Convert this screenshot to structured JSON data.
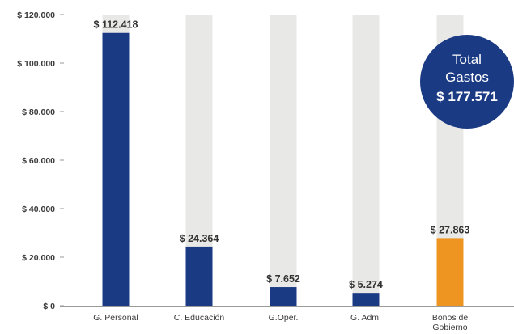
{
  "chart_data": {
    "type": "bar",
    "categories": [
      [
        "G. Personal"
      ],
      [
        "C. Educación"
      ],
      [
        "G.Oper."
      ],
      [
        "G. Adm."
      ],
      [
        "Bonos de",
        "Gobierno"
      ]
    ],
    "values": [
      112418,
      24364,
      7652,
      5274,
      27863
    ],
    "value_labels": [
      "$ 112.418",
      "$ 24.364",
      "$ 7.652",
      "$ 5.274",
      "$ 27.863"
    ],
    "bar_colors": [
      "#1b3a84",
      "#1b3a84",
      "#1b3a84",
      "#1b3a84",
      "#ee9420"
    ],
    "background_column_color": "#e8e8e6",
    "yticks": [
      {
        "value": 0,
        "label": "$ 0"
      },
      {
        "value": 20000,
        "label": "$ 20.000"
      },
      {
        "value": 40000,
        "label": "$ 40.000"
      },
      {
        "value": 60000,
        "label": "$ 60.000"
      },
      {
        "value": 80000,
        "label": "$ 80.000"
      },
      {
        "value": 100000,
        "label": "$ 100.000"
      },
      {
        "value": 120000,
        "label": "$ 120.000"
      }
    ],
    "ylim": [
      0,
      120000
    ],
    "grid": false,
    "title": "",
    "xlabel": "",
    "ylabel": ""
  },
  "total_badge": {
    "line1": "Total",
    "line2": "Gastos",
    "value": "$ 177.571",
    "color": "#1b3a84"
  }
}
